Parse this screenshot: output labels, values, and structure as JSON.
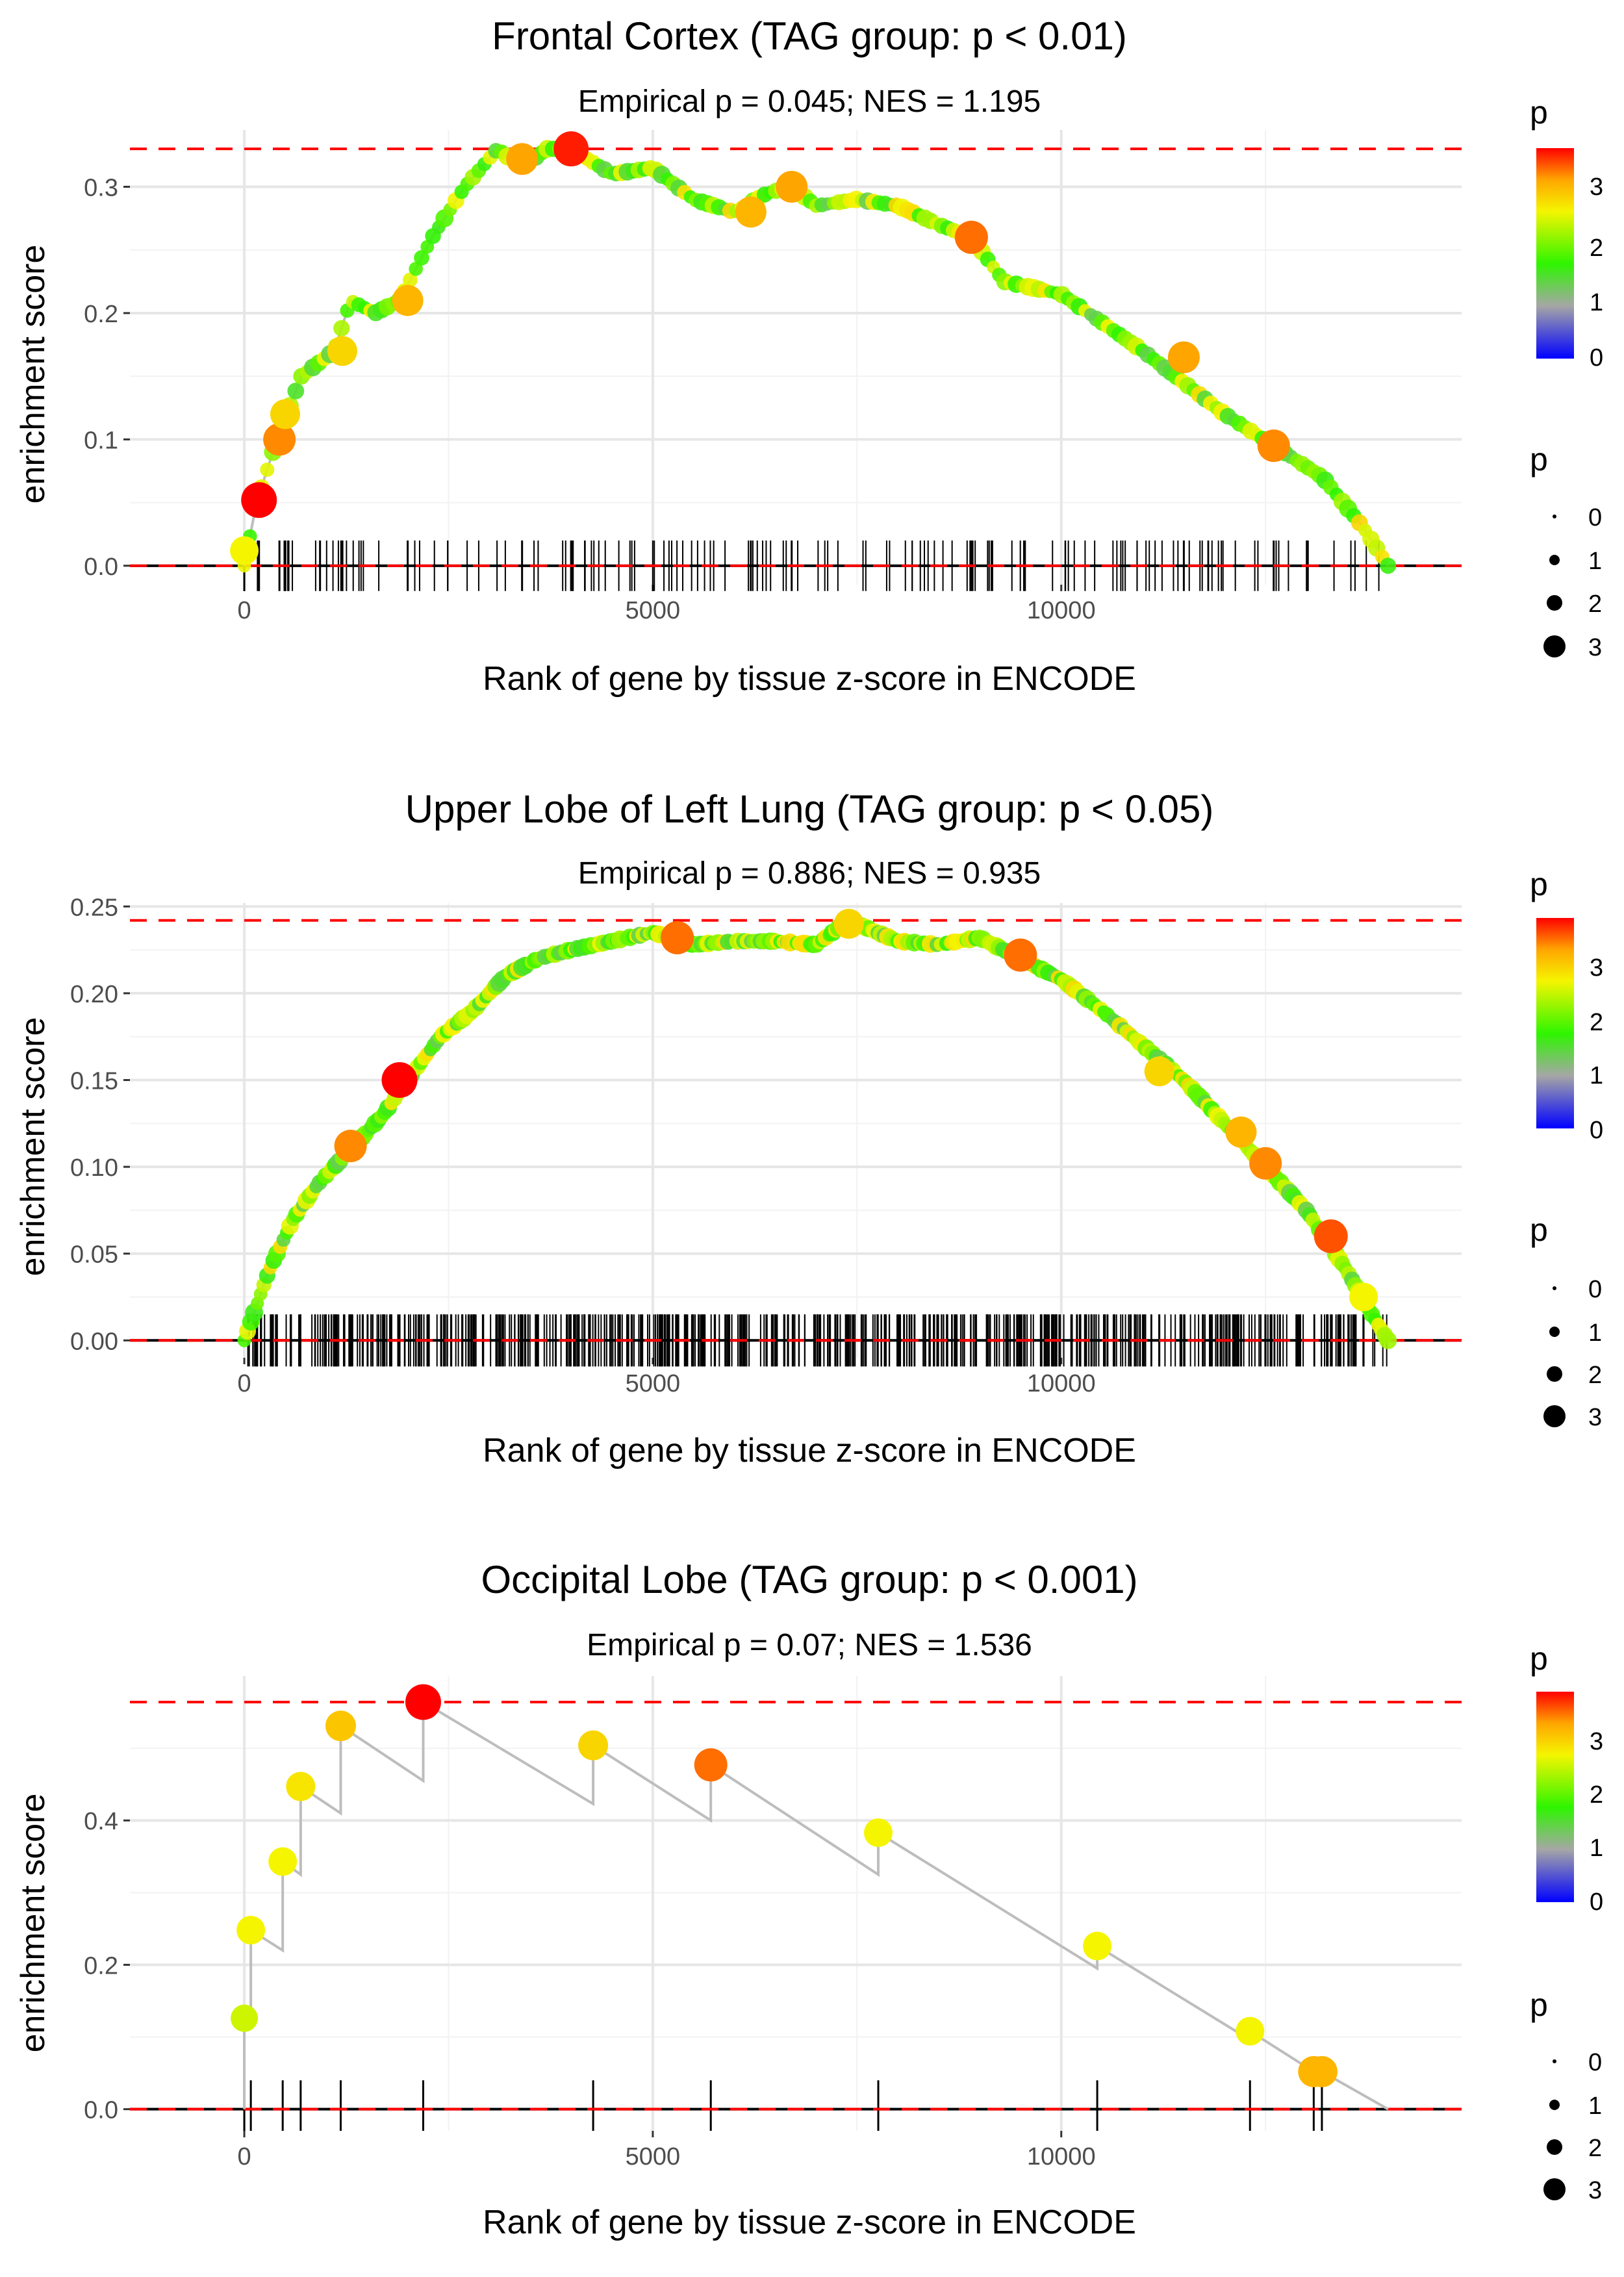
{
  "chart_data": [
    {
      "type": "line",
      "title": "Frontal Cortex (TAG group: p < 0.01)",
      "subtitle": "Empirical p = 0.045; NES = 1.195",
      "xlabel": "Rank of gene by tissue z-score in ENCODE",
      "ylabel": "enrichment score",
      "xlim": [
        -1400,
        14900
      ],
      "ylim": [
        -0.015,
        0.345
      ],
      "x_ticks": [
        0,
        5000,
        10000
      ],
      "x_tick_labels": [
        "0",
        "5000",
        "10000"
      ],
      "y_ticks": [
        0,
        0.1,
        0.2,
        0.3
      ],
      "y_tick_labels": [
        "0.0",
        "0.1",
        "0.2",
        "0.3"
      ],
      "max_es": 0.33,
      "n_genes": 14000,
      "curve_x": [
        0,
        150,
        400,
        700,
        1100,
        1300,
        1600,
        1900,
        2300,
        2700,
        3100,
        3400,
        3700,
        4000,
        4500,
        5000,
        5500,
        6000,
        6400,
        6700,
        7000,
        7500,
        8000,
        8500,
        8900,
        9300,
        10000,
        11000,
        12000,
        12600,
        13200,
        13700,
        14000
      ],
      "curve_y": [
        0,
        0.05,
        0.1,
        0.15,
        0.17,
        0.21,
        0.2,
        0.21,
        0.26,
        0.3,
        0.33,
        0.315,
        0.33,
        0.33,
        0.31,
        0.315,
        0.29,
        0.28,
        0.295,
        0.3,
        0.285,
        0.29,
        0.285,
        0.27,
        0.26,
        0.225,
        0.215,
        0.17,
        0.12,
        0.095,
        0.07,
        0.03,
        0
      ],
      "highlight_points": [
        {
          "x": 0,
          "y": 0.012,
          "p": 2.8
        },
        {
          "x": 180,
          "y": 0.052,
          "p": 3.9
        },
        {
          "x": 430,
          "y": 0.1,
          "p": 3.4
        },
        {
          "x": 500,
          "y": 0.12,
          "p": 3.0
        },
        {
          "x": 1200,
          "y": 0.17,
          "p": 3.0
        },
        {
          "x": 2000,
          "y": 0.21,
          "p": 3.2
        },
        {
          "x": 3400,
          "y": 0.322,
          "p": 3.3
        },
        {
          "x": 4000,
          "y": 0.33,
          "p": 3.8
        },
        {
          "x": 6200,
          "y": 0.28,
          "p": 3.2
        },
        {
          "x": 6700,
          "y": 0.3,
          "p": 3.3
        },
        {
          "x": 8900,
          "y": 0.26,
          "p": 3.5
        },
        {
          "x": 11500,
          "y": 0.165,
          "p": 3.3
        },
        {
          "x": 12600,
          "y": 0.095,
          "p": 3.4
        }
      ],
      "legend_color_title": "p",
      "legend_color_labels": [
        "3",
        "2",
        "1",
        "0"
      ],
      "legend_size_title": "p",
      "legend_size_labels": [
        "0",
        "1",
        "2",
        "3"
      ]
    },
    {
      "type": "line",
      "title": "Upper Lobe of Left Lung (TAG group: p < 0.05)",
      "subtitle": "Empirical p = 0.886; NES = 0.935",
      "xlabel": "Rank of gene by tissue z-score in ENCODE",
      "ylabel": "enrichment score",
      "xlim": [
        -1400,
        14900
      ],
      "ylim": [
        -0.01,
        0.252
      ],
      "x_ticks": [
        0,
        5000,
        10000
      ],
      "x_tick_labels": [
        "0",
        "5000",
        "10000"
      ],
      "y_ticks": [
        0,
        0.05,
        0.1,
        0.15,
        0.2,
        0.25
      ],
      "y_tick_labels": [
        "0.00",
        "0.05",
        "0.10",
        "0.15",
        "0.20",
        "0.25"
      ],
      "max_es": 0.242,
      "n_genes": 14000,
      "curve_x": [
        0,
        300,
        600,
        900,
        1300,
        1700,
        2000,
        2400,
        2800,
        3200,
        3600,
        4000,
        4500,
        5000,
        5500,
        6000,
        6500,
        7000,
        7400,
        8000,
        8500,
        9000,
        9500,
        10000,
        10500,
        11000,
        11500,
        12000,
        12500,
        13000,
        13500,
        13800,
        14000
      ],
      "curve_y": [
        0,
        0.04,
        0.07,
        0.09,
        0.11,
        0.13,
        0.15,
        0.175,
        0.19,
        0.21,
        0.22,
        0.225,
        0.23,
        0.235,
        0.228,
        0.23,
        0.23,
        0.228,
        0.242,
        0.23,
        0.228,
        0.232,
        0.22,
        0.208,
        0.19,
        0.17,
        0.15,
        0.125,
        0.1,
        0.075,
        0.04,
        0.015,
        0
      ],
      "highlight_points": [
        {
          "x": 1300,
          "y": 0.112,
          "p": 3.4
        },
        {
          "x": 1900,
          "y": 0.15,
          "p": 3.9
        },
        {
          "x": 5300,
          "y": 0.232,
          "p": 3.5
        },
        {
          "x": 7400,
          "y": 0.24,
          "p": 3.0
        },
        {
          "x": 9500,
          "y": 0.222,
          "p": 3.5
        },
        {
          "x": 11200,
          "y": 0.155,
          "p": 3.0
        },
        {
          "x": 12200,
          "y": 0.12,
          "p": 3.2
        },
        {
          "x": 12500,
          "y": 0.102,
          "p": 3.4
        },
        {
          "x": 13300,
          "y": 0.06,
          "p": 3.6
        },
        {
          "x": 13700,
          "y": 0.025,
          "p": 2.8
        }
      ],
      "legend_color_title": "p",
      "legend_color_labels": [
        "3",
        "2",
        "1",
        "0"
      ],
      "legend_size_title": "p",
      "legend_size_labels": [
        "0",
        "1",
        "2",
        "3"
      ]
    },
    {
      "type": "line",
      "title": "Occipital Lobe (TAG group: p < 0.001)",
      "subtitle": "Empirical p = 0.07; NES = 1.536",
      "xlabel": "Rank of gene by tissue z-score in ENCODE",
      "ylabel": "enrichment score",
      "xlim": [
        -1400,
        14900
      ],
      "ylim": [
        -0.03,
        0.6
      ],
      "x_ticks": [
        0,
        5000,
        10000
      ],
      "x_tick_labels": [
        "0",
        "5000",
        "10000"
      ],
      "y_ticks": [
        0,
        0.2,
        0.4
      ],
      "y_tick_labels": [
        "0.0",
        "0.2",
        "0.4"
      ],
      "max_es": 0.564,
      "n_genes": 14000,
      "curve_x": [
        0,
        0,
        80,
        80,
        470,
        470,
        690,
        690,
        1180,
        1180,
        2190,
        2190,
        4270,
        4270,
        5710,
        5710,
        7760,
        7760,
        10440,
        10440,
        12310,
        12310,
        13090,
        13190,
        14000
      ],
      "curve_y": [
        0,
        0.126,
        0.126,
        0.248,
        0.22,
        0.343,
        0.325,
        0.447,
        0.41,
        0.531,
        0.455,
        0.564,
        0.423,
        0.504,
        0.4,
        0.477,
        0.325,
        0.383,
        0.195,
        0.226,
        0.096,
        0.108,
        0.052,
        0.052,
        0
      ],
      "highlight_points": [
        {
          "x": 0,
          "y": 0.126,
          "p": 2.6
        },
        {
          "x": 80,
          "y": 0.248,
          "p": 2.8
        },
        {
          "x": 470,
          "y": 0.343,
          "p": 2.8
        },
        {
          "x": 690,
          "y": 0.447,
          "p": 2.9
        },
        {
          "x": 1180,
          "y": 0.531,
          "p": 3.1
        },
        {
          "x": 2190,
          "y": 0.564,
          "p": 3.9
        },
        {
          "x": 4270,
          "y": 0.504,
          "p": 3.0
        },
        {
          "x": 5710,
          "y": 0.477,
          "p": 3.5
        },
        {
          "x": 7760,
          "y": 0.383,
          "p": 2.8
        },
        {
          "x": 10440,
          "y": 0.226,
          "p": 2.8
        },
        {
          "x": 12310,
          "y": 0.108,
          "p": 2.8
        },
        {
          "x": 13090,
          "y": 0.052,
          "p": 3.2
        },
        {
          "x": 13190,
          "y": 0.052,
          "p": 3.2
        }
      ],
      "legend_color_title": "p",
      "legend_color_labels": [
        "3",
        "2",
        "1",
        "0"
      ],
      "legend_size_title": "p",
      "legend_size_labels": [
        "0",
        "1",
        "2",
        "3"
      ]
    }
  ]
}
